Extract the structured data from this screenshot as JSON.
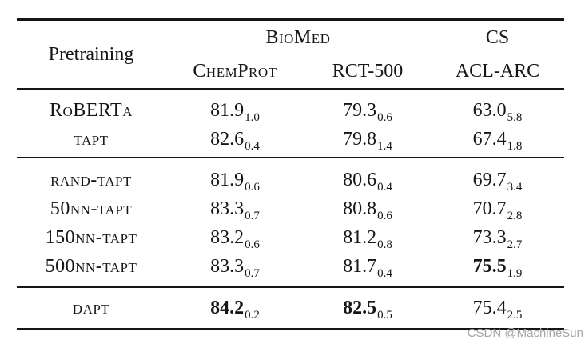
{
  "page": {
    "background": "#ffffff",
    "text_color": "#161616",
    "rule_color": "#161616",
    "watermark_color": "#a6a6a6"
  },
  "watermark": "CSDN @MachineSun",
  "table": {
    "header": {
      "pretraining": "Pretraining",
      "groups": [
        {
          "label": "BioMed"
        },
        {
          "label": "CS"
        }
      ],
      "columns": [
        {
          "label": "ChemProt"
        },
        {
          "label": "RCT-500"
        },
        {
          "label": "ACL-ARC"
        }
      ]
    },
    "sections": [
      {
        "rows": [
          {
            "label": "RoBERTa",
            "cells": [
              {
                "value": "81.9",
                "sub": "1.0",
                "bold": false
              },
              {
                "value": "79.3",
                "sub": "0.6",
                "bold": false
              },
              {
                "value": "63.0",
                "sub": "5.8",
                "bold": false
              }
            ]
          },
          {
            "label": "tapt",
            "cells": [
              {
                "value": "82.6",
                "sub": "0.4",
                "bold": false
              },
              {
                "value": "79.8",
                "sub": "1.4",
                "bold": false
              },
              {
                "value": "67.4",
                "sub": "1.8",
                "bold": false
              }
            ]
          }
        ]
      },
      {
        "rows": [
          {
            "label": "rand-tapt",
            "cells": [
              {
                "value": "81.9",
                "sub": "0.6",
                "bold": false
              },
              {
                "value": "80.6",
                "sub": "0.4",
                "bold": false
              },
              {
                "value": "69.7",
                "sub": "3.4",
                "bold": false
              }
            ]
          },
          {
            "label": "50nn-tapt",
            "cells": [
              {
                "value": "83.3",
                "sub": "0.7",
                "bold": false
              },
              {
                "value": "80.8",
                "sub": "0.6",
                "bold": false
              },
              {
                "value": "70.7",
                "sub": "2.8",
                "bold": false
              }
            ]
          },
          {
            "label": "150nn-tapt",
            "cells": [
              {
                "value": "83.2",
                "sub": "0.6",
                "bold": false
              },
              {
                "value": "81.2",
                "sub": "0.8",
                "bold": false
              },
              {
                "value": "73.3",
                "sub": "2.7",
                "bold": false
              }
            ]
          },
          {
            "label": "500nn-tapt",
            "cells": [
              {
                "value": "83.3",
                "sub": "0.7",
                "bold": false
              },
              {
                "value": "81.7",
                "sub": "0.4",
                "bold": false
              },
              {
                "value": "75.5",
                "sub": "1.9",
                "bold": true
              }
            ]
          }
        ]
      },
      {
        "rows": [
          {
            "label": "dapt",
            "cells": [
              {
                "value": "84.2",
                "sub": "0.2",
                "bold": true
              },
              {
                "value": "82.5",
                "sub": "0.5",
                "bold": true
              },
              {
                "value": "75.4",
                "sub": "2.5",
                "bold": false
              }
            ]
          }
        ]
      }
    ]
  }
}
